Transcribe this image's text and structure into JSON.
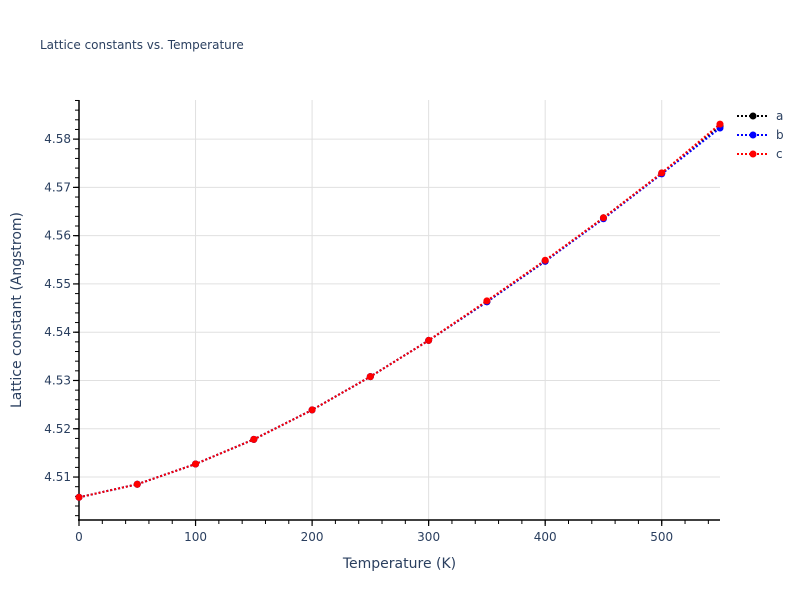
{
  "chart_data": {
    "type": "line",
    "title": "Lattice constants vs. Temperature",
    "xlabel": "Temperature (K)",
    "ylabel": "Lattice constant (Angstrom)",
    "x": [
      0,
      50,
      100,
      150,
      200,
      250,
      300,
      350,
      400,
      450,
      500,
      550
    ],
    "xlim": [
      0,
      550
    ],
    "ylim": [
      4.5011,
      4.5881
    ],
    "xticks": [
      0,
      100,
      200,
      300,
      400,
      500
    ],
    "yticks": [
      4.51,
      4.52,
      4.53,
      4.54,
      4.55,
      4.56,
      4.57,
      4.58
    ],
    "ytick_labels": [
      "4.51",
      "4.52",
      "4.53",
      "4.54",
      "4.55",
      "4.56",
      "4.57",
      "4.58"
    ],
    "grid": true,
    "legend_position": "right-top",
    "series": [
      {
        "name": "a",
        "color": "#000000",
        "values": [
          4.5058,
          4.5085,
          4.5127,
          4.5178,
          4.5239,
          4.5308,
          4.5383,
          4.5463,
          4.5547,
          4.5637,
          4.5729,
          4.5827
        ]
      },
      {
        "name": "b",
        "color": "#0000ff",
        "values": [
          4.5058,
          4.5085,
          4.5127,
          4.5178,
          4.5239,
          4.5308,
          4.5383,
          4.5463,
          4.5547,
          4.5635,
          4.5728,
          4.5823
        ]
      },
      {
        "name": "c",
        "color": "#ff0000",
        "values": [
          4.5058,
          4.5085,
          4.5127,
          4.5178,
          4.5239,
          4.5308,
          4.5383,
          4.5465,
          4.5549,
          4.5637,
          4.573,
          4.5831
        ]
      }
    ]
  },
  "legend": {
    "items": [
      {
        "label": "a",
        "color": "#000000"
      },
      {
        "label": "b",
        "color": "#0000ff"
      },
      {
        "label": "c",
        "color": "#ff0000"
      }
    ]
  }
}
